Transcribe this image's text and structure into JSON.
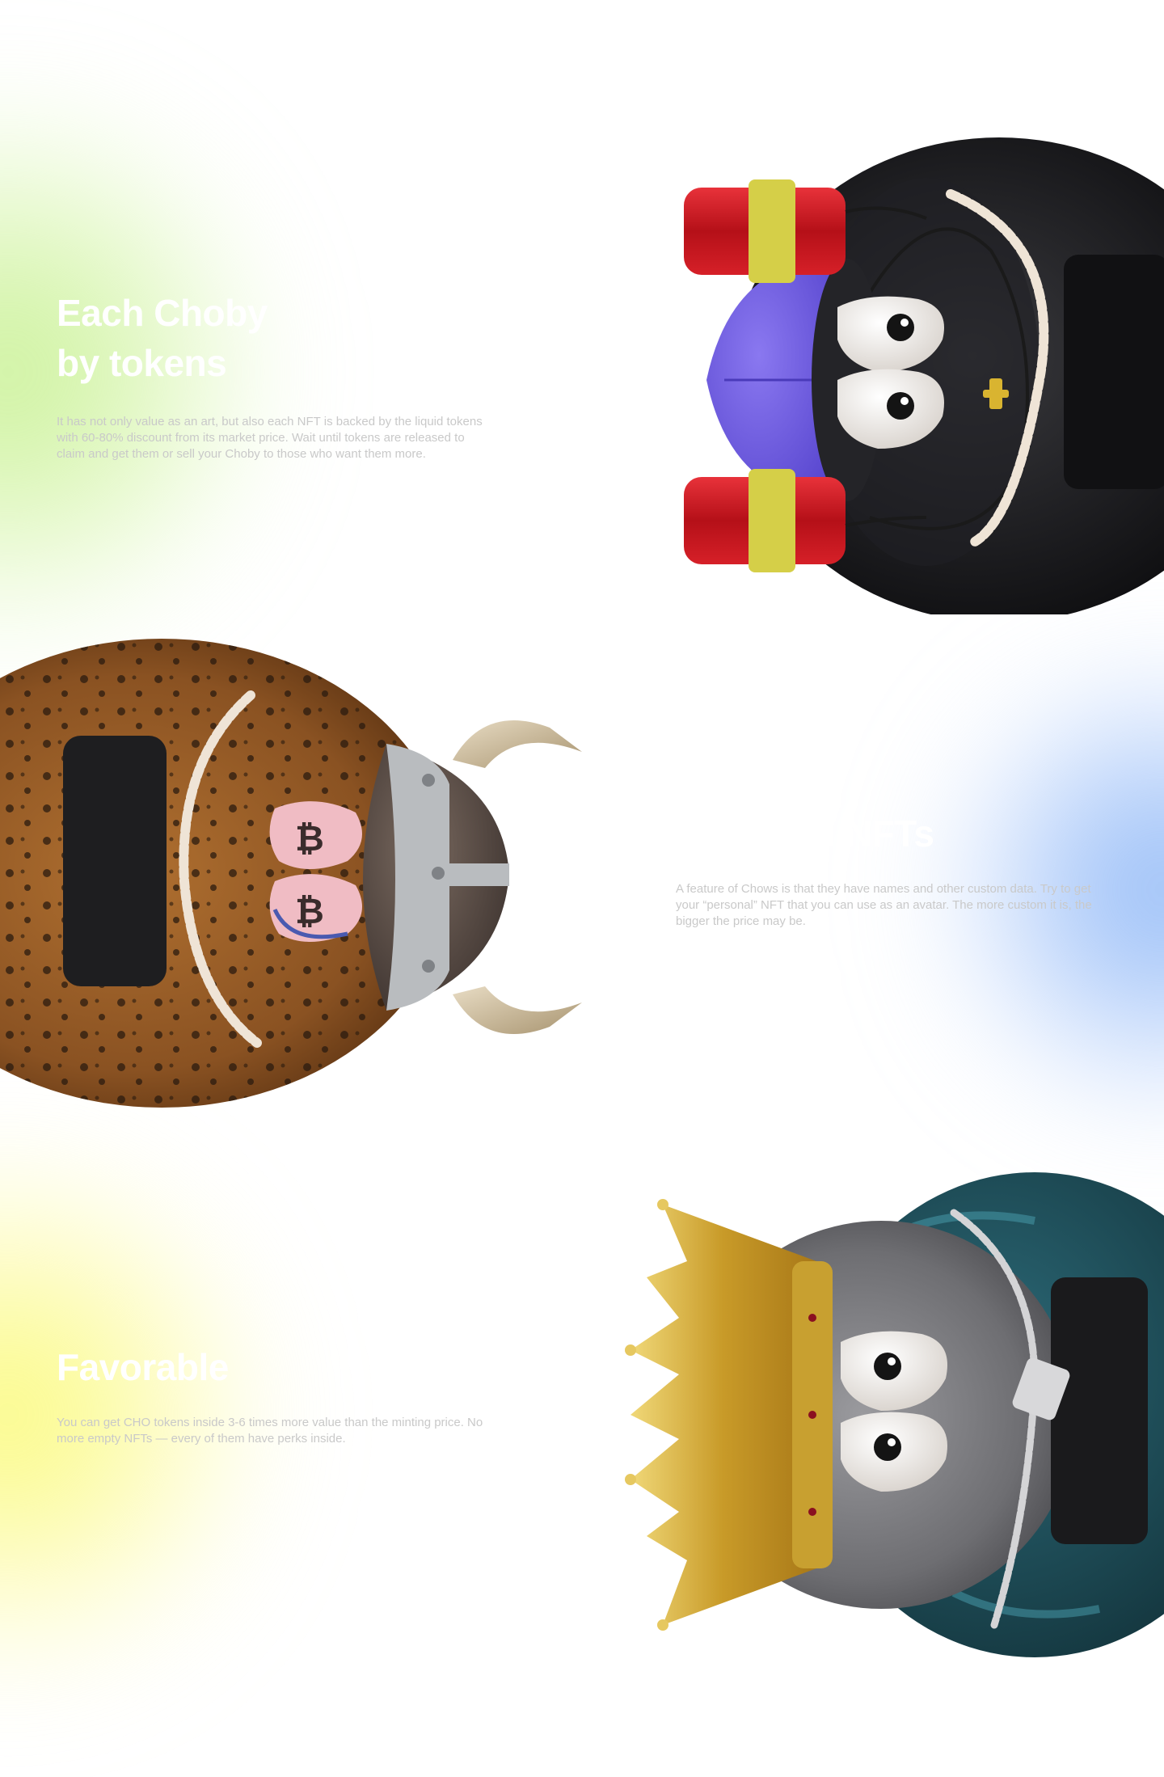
{
  "sections": [
    {
      "heading": "Each Choby\nby tokens",
      "body": "It has not only value as an art, but also each NFT is backed by the liquid tokens with 60-80% discount from its market price. Wait until tokens are released to claim and get them or sell your Choby to those who want them more."
    },
    {
      "heading": "d NFTs",
      "body": "A feature of Chows is that they have names and other custom data. Try to get your “personal” NFT that you can use as an avatar. The more custom it is, the bigger the price may be."
    },
    {
      "heading": "Favorable",
      "body": "You can get CHO tokens inside 3-6 times more value than the minting price. No more empty NFTs — every of them have perks inside."
    }
  ],
  "characters": [
    {
      "icon": "black-fur-monster-with-purple-cap-and-soda-cans-icon"
    },
    {
      "icon": "leopard-fur-monster-with-viking-helmet-icon"
    },
    {
      "icon": "grey-fur-monster-with-golden-crown-icon"
    }
  ],
  "colors": {
    "background": "#ffffff",
    "heading": "#ffffff",
    "body_text": "#c9c9c9",
    "glow_green": "#c4f08c",
    "glow_blue": "#82b0f5",
    "glow_yellow": "#fafa6e"
  }
}
